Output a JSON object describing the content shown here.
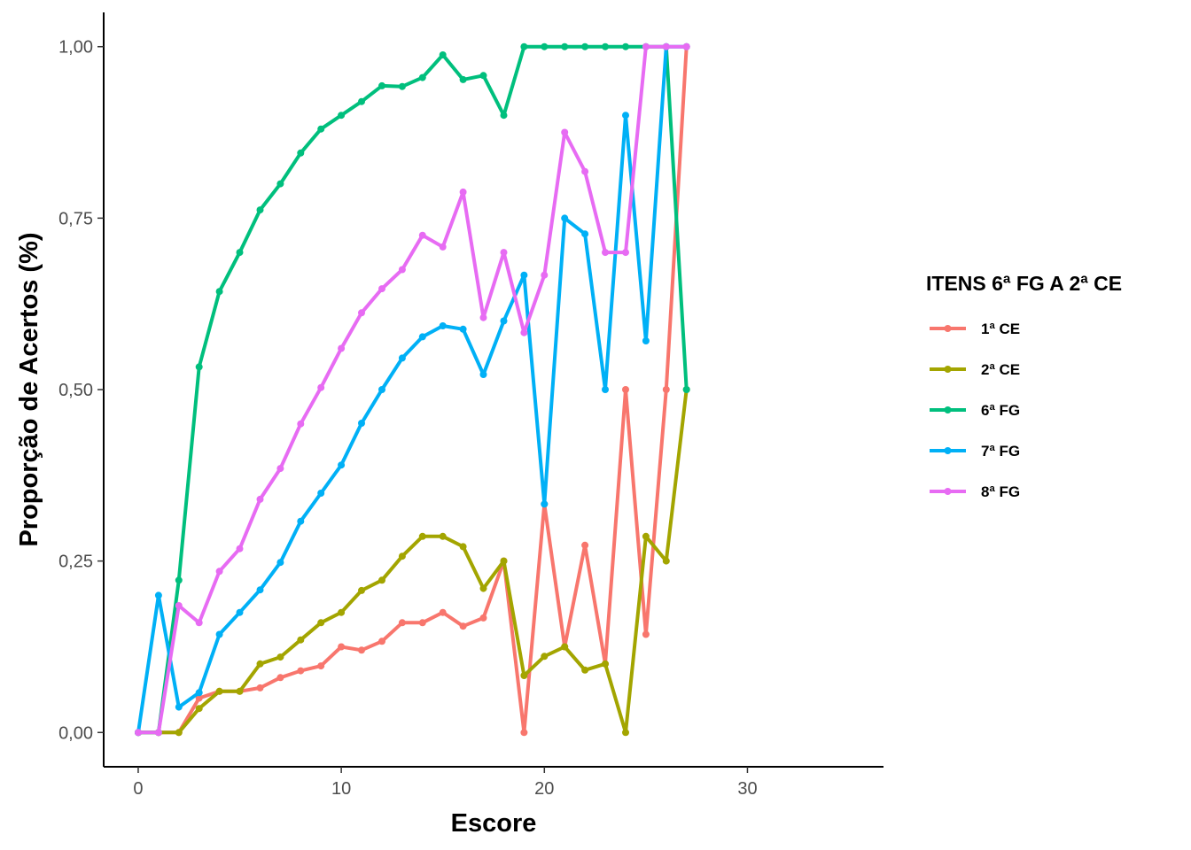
{
  "chart_data": {
    "type": "line",
    "xlabel": "Escore",
    "ylabel": "Proporção de Acertos (%)",
    "xlim": [
      -1.7,
      36.7
    ],
    "ylim": [
      -0.05,
      1.05
    ],
    "xticks": [
      0,
      10,
      20,
      30
    ],
    "xtick_labels": [
      "0",
      "10",
      "20",
      "30"
    ],
    "yticks": [
      0,
      0.25,
      0.5,
      0.75,
      1.0
    ],
    "ytick_labels": [
      "0,00",
      "0,25",
      "0,50",
      "0,75",
      "1,00"
    ],
    "grid": false,
    "legend": {
      "title": "ITENS 6ª FG A 2ª CE",
      "position": "right"
    },
    "series": [
      {
        "name": "1ª CE",
        "color": "#F8766D",
        "x": [
          0,
          1,
          2,
          3,
          4,
          5,
          6,
          7,
          8,
          9,
          10,
          11,
          12,
          13,
          14,
          15,
          16,
          17,
          18,
          19,
          20,
          21,
          22,
          23,
          24,
          25,
          26,
          27
        ],
        "y": [
          0,
          0,
          0,
          0.05,
          0.06,
          0.06,
          0.065,
          0.08,
          0.09,
          0.097,
          0.125,
          0.12,
          0.133,
          0.16,
          0.16,
          0.175,
          0.155,
          0.167,
          0.25,
          0,
          0.333,
          0.125,
          0.273,
          0.1,
          0.5,
          0.143,
          0.5,
          1.0
        ]
      },
      {
        "name": "2ª CE",
        "color": "#A3A500",
        "x": [
          0,
          1,
          2,
          3,
          4,
          5,
          6,
          7,
          8,
          9,
          10,
          11,
          12,
          13,
          14,
          15,
          16,
          17,
          18,
          19,
          20,
          21,
          22,
          23,
          24,
          25,
          26,
          27
        ],
        "y": [
          0,
          0,
          0,
          0.035,
          0.06,
          0.06,
          0.1,
          0.11,
          0.135,
          0.16,
          0.175,
          0.207,
          0.222,
          0.257,
          0.286,
          0.286,
          0.271,
          0.21,
          0.25,
          0.083,
          0.111,
          0.125,
          0.091,
          0.1,
          0,
          0.286,
          0.25,
          0.5
        ]
      },
      {
        "name": "6ª FG",
        "color": "#00BF7D",
        "x": [
          0,
          1,
          2,
          3,
          4,
          5,
          6,
          7,
          8,
          9,
          10,
          11,
          12,
          13,
          14,
          15,
          16,
          17,
          18,
          19,
          20,
          21,
          22,
          23,
          24,
          25,
          26,
          27
        ],
        "y": [
          0,
          0,
          0.222,
          0.533,
          0.643,
          0.7,
          0.762,
          0.8,
          0.845,
          0.88,
          0.9,
          0.92,
          0.943,
          0.942,
          0.955,
          0.988,
          0.952,
          0.958,
          0.9,
          1.0,
          1.0,
          1.0,
          1.0,
          1.0,
          1.0,
          1.0,
          1.0,
          0.5
        ]
      },
      {
        "name": "7ª FG",
        "color": "#00B0F6",
        "x": [
          0,
          1,
          2,
          3,
          4,
          5,
          6,
          7,
          8,
          9,
          10,
          11,
          12,
          13,
          14,
          15,
          16,
          17,
          18,
          19,
          20,
          21,
          22,
          23,
          24,
          25,
          26,
          27
        ],
        "y": [
          0,
          0.2,
          0.037,
          0.058,
          0.143,
          0.175,
          0.208,
          0.248,
          0.308,
          0.349,
          0.39,
          0.451,
          0.5,
          0.546,
          0.577,
          0.593,
          0.588,
          0.522,
          0.6,
          0.667,
          0.333,
          0.75,
          0.727,
          0.5,
          0.9,
          0.571,
          1.0,
          1.0
        ]
      },
      {
        "name": "8ª FG",
        "color": "#E76BF3",
        "x": [
          0,
          1,
          2,
          3,
          4,
          5,
          6,
          7,
          8,
          9,
          10,
          11,
          12,
          13,
          14,
          15,
          16,
          17,
          18,
          19,
          20,
          21,
          22,
          23,
          24,
          25,
          26,
          27
        ],
        "y": [
          0,
          0,
          0.185,
          0.16,
          0.235,
          0.268,
          0.34,
          0.385,
          0.45,
          0.503,
          0.56,
          0.612,
          0.647,
          0.675,
          0.725,
          0.708,
          0.788,
          0.605,
          0.7,
          0.583,
          0.667,
          0.875,
          0.818,
          0.7,
          0.7,
          1.0,
          1.0,
          1.0
        ]
      }
    ]
  }
}
